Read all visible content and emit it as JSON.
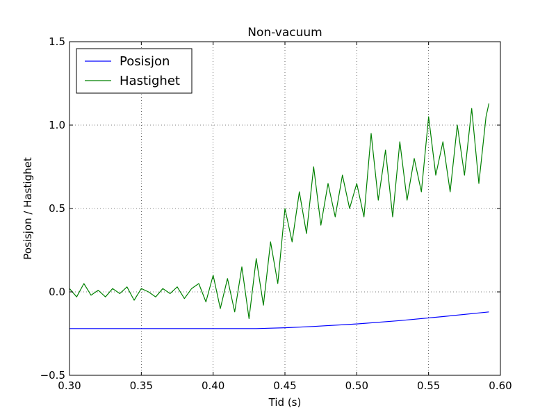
{
  "chart_data": {
    "type": "line",
    "title": "Non-vacuum",
    "xlabel": "Tid (s)",
    "ylabel": "Posisjon / Hastighet",
    "xlim": [
      0.3,
      0.6
    ],
    "ylim": [
      -0.5,
      1.5
    ],
    "xticks": [
      0.3,
      0.35,
      0.4,
      0.45,
      0.5,
      0.55,
      0.6
    ],
    "xtick_labels": [
      "0.30",
      "0.35",
      "0.40",
      "0.45",
      "0.50",
      "0.55",
      "0.60"
    ],
    "yticks": [
      -0.5,
      0.0,
      0.5,
      1.0,
      1.5
    ],
    "ytick_labels": [
      "−0.5",
      "0.0",
      "0.5",
      "1.0",
      "1.5"
    ],
    "grid": true,
    "legend_position": "top-left",
    "series": [
      {
        "name": "Posisjon",
        "color": "#0000ff",
        "x": [
          0.3,
          0.35,
          0.4,
          0.43,
          0.45,
          0.47,
          0.5,
          0.53,
          0.56,
          0.592
        ],
        "y": [
          -0.22,
          -0.22,
          -0.22,
          -0.22,
          -0.215,
          -0.207,
          -0.192,
          -0.172,
          -0.148,
          -0.12
        ]
      },
      {
        "name": "Hastighet",
        "color": "#008000",
        "x": [
          0.3,
          0.305,
          0.31,
          0.315,
          0.32,
          0.325,
          0.33,
          0.335,
          0.34,
          0.345,
          0.35,
          0.355,
          0.36,
          0.365,
          0.37,
          0.375,
          0.38,
          0.385,
          0.39,
          0.395,
          0.4,
          0.405,
          0.41,
          0.415,
          0.42,
          0.425,
          0.43,
          0.435,
          0.44,
          0.445,
          0.45,
          0.455,
          0.46,
          0.465,
          0.47,
          0.475,
          0.48,
          0.485,
          0.49,
          0.495,
          0.5,
          0.505,
          0.51,
          0.515,
          0.52,
          0.525,
          0.53,
          0.535,
          0.54,
          0.545,
          0.55,
          0.555,
          0.56,
          0.565,
          0.57,
          0.575,
          0.58,
          0.585,
          0.59,
          0.592
        ],
        "y": [
          0.02,
          -0.03,
          0.05,
          -0.02,
          0.01,
          -0.03,
          0.02,
          -0.01,
          0.03,
          -0.05,
          0.02,
          0.0,
          -0.03,
          0.02,
          -0.01,
          0.03,
          -0.04,
          0.02,
          0.05,
          -0.06,
          0.1,
          -0.1,
          0.08,
          -0.12,
          0.15,
          -0.16,
          0.2,
          -0.08,
          0.3,
          0.05,
          0.5,
          0.3,
          0.6,
          0.35,
          0.75,
          0.4,
          0.65,
          0.45,
          0.7,
          0.5,
          0.65,
          0.45,
          0.95,
          0.55,
          0.85,
          0.45,
          0.9,
          0.55,
          0.8,
          0.6,
          1.05,
          0.7,
          0.9,
          0.6,
          1.0,
          0.7,
          1.1,
          0.65,
          1.05,
          1.13
        ]
      }
    ]
  }
}
